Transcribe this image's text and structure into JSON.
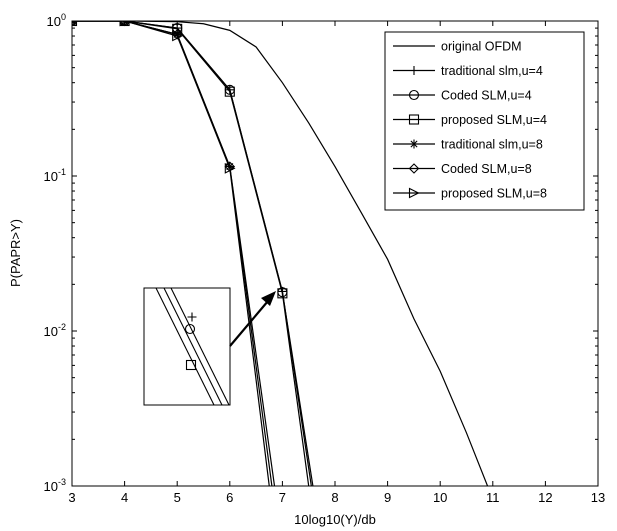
{
  "chart_data": {
    "type": "line",
    "title": "",
    "xlabel": "10log10(Y)/db",
    "ylabel": "P(PAPR>Y)",
    "xlim": [
      3,
      13
    ],
    "ylim": [
      0.001,
      1
    ],
    "yscale": "log",
    "grid": false,
    "legend_position": "top-right",
    "x_ticks": [
      "3",
      "4",
      "5",
      "6",
      "7",
      "8",
      "9",
      "10",
      "11",
      "12",
      "13"
    ],
    "y_ticks": [
      {
        "base": "10",
        "exp": "0",
        "value": 1
      },
      {
        "base": "10",
        "exp": "-1",
        "value": 0.1
      },
      {
        "base": "10",
        "exp": "-2",
        "value": 0.01
      },
      {
        "base": "10",
        "exp": "-3",
        "value": 0.001
      }
    ],
    "series": [
      {
        "name": "original OFDM",
        "marker": "none",
        "x": [
          3,
          4,
          5,
          5.5,
          6,
          6.5,
          7,
          7.5,
          8,
          8.5,
          9,
          9.5,
          10,
          10.5,
          10.9
        ],
        "y": [
          1,
          1,
          0.99,
          0.96,
          0.87,
          0.68,
          0.4,
          0.22,
          0.115,
          0.058,
          0.029,
          0.012,
          0.0055,
          0.0022,
          0.001
        ]
      },
      {
        "name": "traditional slm,u=4",
        "marker": "plus",
        "x": [
          3,
          4,
          5,
          6,
          7,
          7.55
        ],
        "y": [
          1,
          1,
          0.9,
          0.36,
          0.018,
          0.001
        ]
      },
      {
        "name": "Coded SLM,u=4",
        "marker": "circle",
        "x": [
          3,
          4,
          5,
          6,
          7,
          7.58
        ],
        "y": [
          1,
          1,
          0.9,
          0.36,
          0.0178,
          0.001
        ]
      },
      {
        "name": "proposed SLM,u=4",
        "marker": "square",
        "x": [
          3,
          4,
          5,
          6,
          7,
          7.5
        ],
        "y": [
          1,
          1,
          0.89,
          0.35,
          0.0175,
          0.001
        ]
      },
      {
        "name": "traditional slm,u=8",
        "marker": "star",
        "x": [
          3,
          4,
          5,
          6,
          6.8
        ],
        "y": [
          1,
          1,
          0.82,
          0.115,
          0.001
        ]
      },
      {
        "name": "Coded SLM,u=8",
        "marker": "diamond",
        "x": [
          3,
          4,
          5,
          6,
          6.85
        ],
        "y": [
          1,
          1,
          0.82,
          0.115,
          0.001
        ]
      },
      {
        "name": "proposed SLM,u=8",
        "marker": "triangle-right",
        "x": [
          3,
          4,
          5,
          6,
          6.75
        ],
        "y": [
          1,
          1,
          0.8,
          0.112,
          0.001
        ]
      }
    ],
    "inset": {
      "description": "magnified view near x=7, y=0.018",
      "markers": [
        "plus",
        "circle",
        "square"
      ]
    }
  }
}
